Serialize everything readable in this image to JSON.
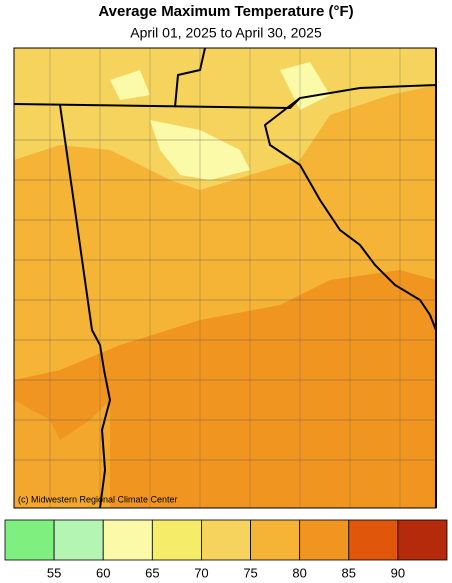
{
  "title": "Average Maximum Temperature (°F)",
  "subtitle": "April 01, 2025 to April 30, 2025",
  "credit": "(c) Midwestern Regional Climate Center",
  "legend": {
    "colors": [
      "#7ff07f",
      "#b4f5b4",
      "#fafaa8",
      "#f5ec6a",
      "#f5d35c",
      "#f5b435",
      "#f0951f",
      "#e0560a",
      "#b42a0a"
    ],
    "ticks": [
      55,
      60,
      65,
      70,
      75,
      80,
      85,
      90
    ]
  }
}
